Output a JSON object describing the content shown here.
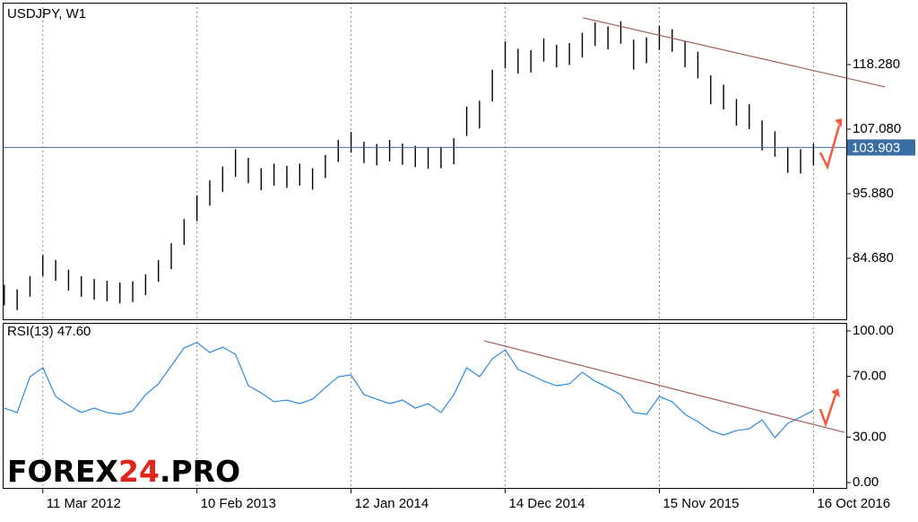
{
  "chart_data": [
    {
      "type": "ohlc",
      "title": "USDJPY, W1",
      "color": "#000000",
      "x": [
        0,
        4,
        8,
        12,
        16,
        20,
        24,
        28,
        32,
        36,
        40,
        44,
        48,
        52,
        56,
        60,
        64,
        68,
        72,
        76,
        80,
        84,
        88,
        92,
        96,
        100,
        104,
        108,
        112,
        116,
        120,
        124,
        128,
        132,
        136,
        140,
        144,
        148,
        152,
        156,
        160,
        164,
        168,
        172,
        176,
        180,
        184,
        188,
        192,
        196,
        200,
        204,
        208,
        212,
        216,
        220,
        224,
        228,
        232,
        236,
        240,
        244,
        248,
        252
      ],
      "high": [
        80.1,
        79.3,
        81.6,
        85.2,
        84.4,
        82.7,
        81.6,
        81.1,
        80.8,
        80.5,
        80.7,
        81.9,
        84.4,
        87.3,
        91.5,
        95.6,
        98.2,
        100.6,
        103.6,
        102.1,
        100.3,
        101.1,
        100.7,
        101.1,
        100.3,
        102.6,
        105.2,
        106.6,
        104.9,
        104.5,
        105.2,
        104.6,
        104.2,
        103.9,
        104.0,
        105.5,
        111.0,
        112.0,
        117.4,
        122.3,
        121.0,
        120.8,
        122.8,
        121.7,
        122.0,
        123.8,
        125.6,
        124.9,
        125.8,
        122.6,
        123.0,
        125.0,
        124.4,
        122.3,
        120.5,
        116.4,
        114.8,
        112.3,
        111.4,
        108.6,
        106.7,
        104.0,
        103.6,
        104.6
      ],
      "low": [
        76.5,
        75.7,
        78.0,
        81.6,
        80.8,
        79.1,
        78.0,
        77.5,
        77.2,
        76.9,
        77.1,
        78.3,
        80.6,
        82.8,
        87.0,
        91.1,
        93.8,
        96.2,
        98.8,
        97.7,
        96.5,
        97.3,
        96.9,
        97.3,
        96.6,
        98.6,
        101.4,
        103.0,
        101.2,
        100.8,
        101.5,
        100.9,
        100.5,
        100.2,
        100.3,
        101.0,
        105.9,
        107.2,
        111.9,
        117.6,
        116.7,
        116.9,
        118.8,
        117.8,
        118.2,
        119.5,
        121.5,
        120.9,
        121.9,
        117.4,
        118.5,
        120.8,
        120.5,
        117.8,
        115.9,
        111.4,
        110.5,
        107.7,
        107.1,
        103.4,
        102.3,
        99.5,
        99.4,
        100.8
      ],
      "xlim": [
        -0.5,
        262.5
      ],
      "ylim": [
        73.95,
        129.01
      ],
      "yticks": [
        {
          "value": 84.68,
          "label": "84.680"
        },
        {
          "value": 95.88,
          "label": "95.880"
        },
        {
          "value": 107.08,
          "label": "107.080"
        },
        {
          "value": 118.28,
          "label": "118.280"
        }
      ],
      "current_price": {
        "value": 103.903,
        "label": "103.903"
      },
      "trendline": {
        "x": [
          180.2,
          274.3
        ],
        "y": [
          126.4,
          114.4
        ],
        "color": "#a0605a"
      }
    },
    {
      "type": "line",
      "title": "RSI(13) 47.60",
      "color": "#2b8ae0",
      "x": [
        0,
        4,
        8,
        12,
        16,
        20,
        24,
        28,
        32,
        36,
        40,
        44,
        48,
        52,
        56,
        60,
        64,
        68,
        72,
        76,
        80,
        84,
        88,
        92,
        96,
        100,
        104,
        108,
        112,
        116,
        120,
        124,
        128,
        132,
        136,
        140,
        144,
        148,
        152,
        156,
        160,
        164,
        168,
        172,
        176,
        180,
        184,
        188,
        192,
        196,
        200,
        204,
        208,
        212,
        216,
        220,
        224,
        228,
        232,
        236,
        240,
        244,
        248,
        252
      ],
      "values": [
        49.1,
        46.2,
        69.8,
        75.7,
        56.8,
        50.9,
        46.2,
        49.1,
        46.2,
        45.0,
        47.3,
        58.0,
        65.1,
        76.9,
        88.8,
        92.3,
        85.8,
        89.3,
        84.6,
        63.9,
        59.2,
        53.3,
        54.4,
        52.1,
        55.0,
        62.7,
        69.8,
        71.0,
        58.0,
        55.0,
        52.1,
        54.4,
        49.1,
        52.1,
        46.2,
        58.0,
        75.7,
        69.8,
        81.7,
        87.6,
        74.6,
        71.0,
        66.9,
        63.9,
        65.1,
        72.8,
        66.9,
        62.7,
        58.0,
        46.2,
        45.0,
        56.8,
        53.3,
        45.0,
        40.2,
        34.3,
        31.4,
        34.3,
        35.5,
        41.4,
        29.6,
        39.1,
        43.2,
        47.6
      ],
      "xlim": [
        -0.5,
        262.5
      ],
      "ylim": [
        -4.1,
        105.3
      ],
      "yticks": [
        {
          "value": 0,
          "label": "0.00"
        },
        {
          "value": 30,
          "label": "30.00"
        },
        {
          "value": 70,
          "label": "70.00"
        },
        {
          "value": 100,
          "label": "100.00"
        }
      ],
      "xticks": [
        {
          "value": 12,
          "label": "11 Mar 2012"
        },
        {
          "value": 60,
          "label": "10 Feb 2013"
        },
        {
          "value": 108,
          "label": "12 Jan 2014"
        },
        {
          "value": 156,
          "label": "14 Dec 2014"
        },
        {
          "value": 204,
          "label": "15 Nov 2015"
        },
        {
          "value": 252,
          "label": "16 Oct 2016"
        }
      ],
      "trendline": {
        "x": [
          149.4,
          261.7
        ],
        "y": [
          93.5,
          33.1
        ],
        "color": "#a0605a"
      }
    }
  ],
  "logo": {
    "prefix": "FOREX",
    "highlight": "24",
    "suffix": ".PRO"
  }
}
